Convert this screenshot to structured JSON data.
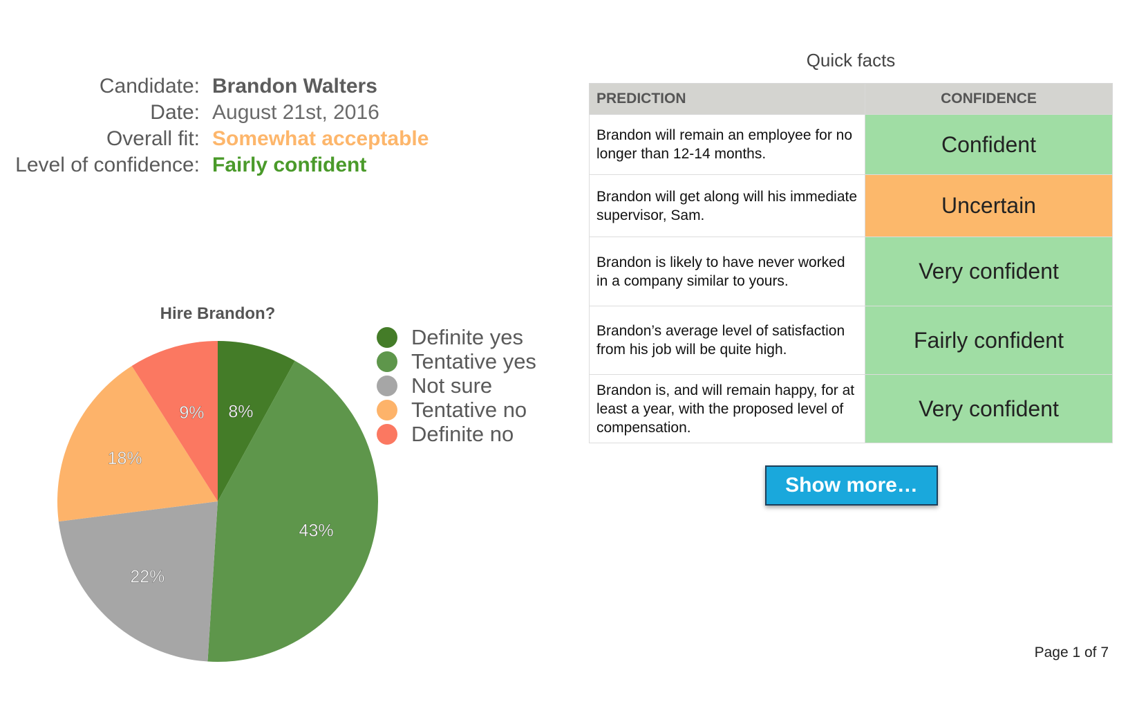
{
  "info": {
    "candidate_label": "Candidate:",
    "candidate_value": "Brandon Walters",
    "date_label": "Date:",
    "date_value": "August 21st, 2016",
    "fit_label": "Overall fit:",
    "fit_value": "Somewhat acceptable",
    "confidence_label": "Level of confidence:",
    "confidence_value": "Fairly confident"
  },
  "chart_data": {
    "type": "pie",
    "title": "Hire Brandon?",
    "categories": [
      "Definite yes",
      "Tentative yes",
      "Not sure",
      "Tentative no",
      "Definite no"
    ],
    "values": [
      8,
      43,
      22,
      18,
      9
    ],
    "labels": [
      "8%",
      "43%",
      "22%",
      "18%",
      "9%"
    ],
    "colors": [
      "#447c28",
      "#5e964b",
      "#a6a6a6",
      "#fdb36a",
      "#fb7861"
    ],
    "legend": "right"
  },
  "table": {
    "title": "Quick facts",
    "headers": [
      "PREDICTION",
      "CONFIDENCE"
    ],
    "rows": [
      {
        "prediction": "Brandon will remain an employee for no longer than 12-14 months.",
        "confidence": "Confident",
        "level": "green"
      },
      {
        "prediction": "Brandon will get along will his immediate supervisor, Sam.",
        "confidence": "Uncertain",
        "level": "orange"
      },
      {
        "prediction": "Brandon is likely to have never worked in a company similar to yours.",
        "confidence": "Very confident",
        "level": "green"
      },
      {
        "prediction": "Brandon’s average level of satisfaction from his job will be quite high.",
        "confidence": "Fairly confident",
        "level": "green"
      },
      {
        "prediction": "Brandon is, and will remain happy, for at least a year, with the proposed level of compensation.",
        "confidence": "Very confident",
        "level": "green"
      }
    ]
  },
  "show_more_label": "Show more…",
  "page_indicator": "Page 1 of 7"
}
